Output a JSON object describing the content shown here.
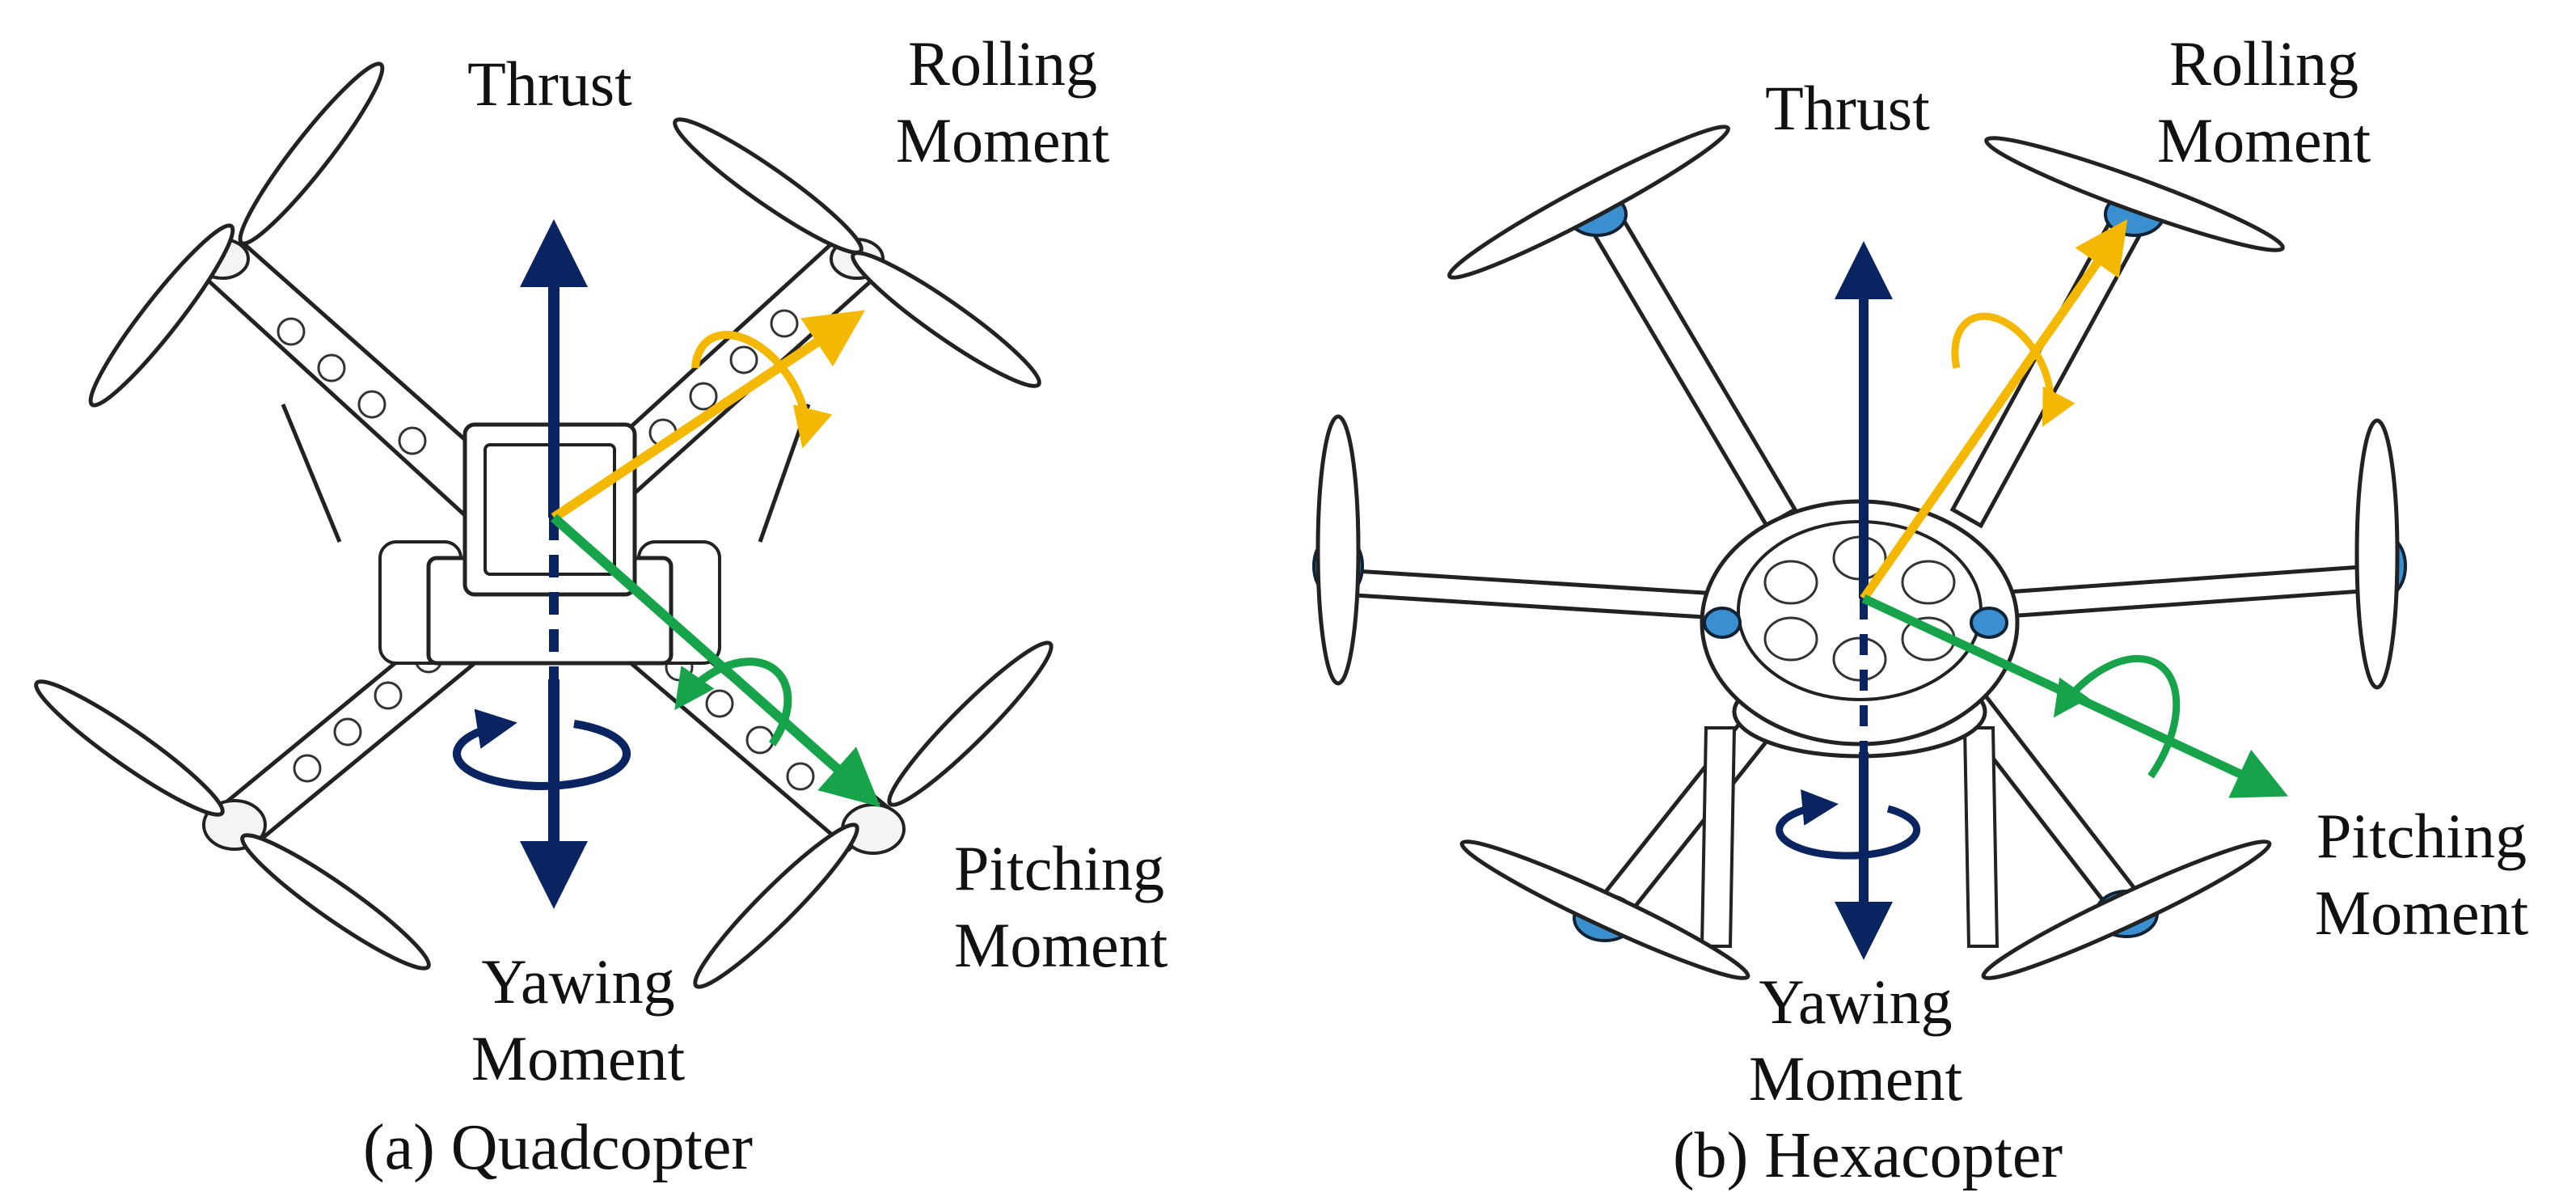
{
  "colors": {
    "thrust": "#0a2461",
    "yaw": "#0a2461",
    "roll": "#f5b800",
    "pitch": "#17a34a",
    "frame_line": "#222222",
    "hexa_motor": "#3a8fd0"
  },
  "quadcopter": {
    "caption": "(a) Quadcopter",
    "thrust_label": "Thrust",
    "rolling_label": [
      "Rolling",
      "Moment"
    ],
    "pitching_label": [
      "Pitching",
      "Moment"
    ],
    "yawing_label": [
      "Yawing",
      "Moment"
    ]
  },
  "hexacopter": {
    "caption": "(b) Hexacopter",
    "thrust_label": "Thrust",
    "rolling_label": [
      "Rolling",
      "Moment"
    ],
    "pitching_label": [
      "Pitching",
      "Moment"
    ],
    "yawing_label": [
      "Yawing",
      "Moment"
    ]
  }
}
